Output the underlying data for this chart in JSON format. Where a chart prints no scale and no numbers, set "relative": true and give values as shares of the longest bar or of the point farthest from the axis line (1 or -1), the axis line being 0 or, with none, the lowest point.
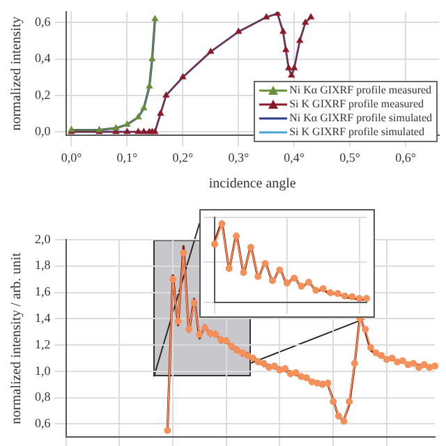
{
  "chart_data": [
    {
      "type": "line",
      "xlabel": "incidence angle",
      "ylabel": "normalized intensity",
      "x": [
        0,
        0.05,
        0.08,
        0.1,
        0.12,
        0.13,
        0.14,
        0.145,
        0.15,
        0.16,
        0.17,
        0.2,
        0.25,
        0.3,
        0.35,
        0.37,
        0.38,
        0.385,
        0.39,
        0.395,
        0.4,
        0.41,
        0.42,
        0.43
      ],
      "xlim": [
        -0.01,
        0.66
      ],
      "xticks": [
        {
          "value": 0,
          "label": "0,0°"
        },
        {
          "value": 0.1,
          "label": "0,1°"
        },
        {
          "value": 0.2,
          "label": "0,2°"
        },
        {
          "value": 0.3,
          "label": "0,3°"
        },
        {
          "value": 0.4,
          "label": "0,4°"
        },
        {
          "value": 0.5,
          "label": "0,5°"
        },
        {
          "value": 0.6,
          "label": "0,6°"
        }
      ],
      "ylim": [
        -0.02,
        0.66
      ],
      "yticks": [
        {
          "value": 0,
          "label": "0,0"
        },
        {
          "value": 0.2,
          "label": "0,2"
        },
        {
          "value": 0.4,
          "label": "0,4"
        },
        {
          "value": 0.6,
          "label": "0,6"
        }
      ],
      "grid": true,
      "legend": "bottom right",
      "series": [
        {
          "name": "Ni Kα GIXRF profile measured",
          "color": "#6a8f3a",
          "marker": "triangle",
          "values": [
            0.01,
            0.01,
            0.02,
            0.04,
            0.08,
            0.13,
            0.25,
            0.4,
            0.62,
            null,
            null,
            null,
            null,
            null,
            null,
            null,
            null,
            null,
            null,
            null,
            null,
            null,
            null,
            null
          ]
        },
        {
          "name": "Si K GIXRF profile measured",
          "color": "#8b1a2a",
          "marker": "triangle",
          "values": [
            0,
            0,
            0,
            0,
            0,
            0,
            0,
            0,
            0,
            0.1,
            0.2,
            0.3,
            0.44,
            0.55,
            0.63,
            0.65,
            0.55,
            0.45,
            0.35,
            0.31,
            0.35,
            0.5,
            0.6,
            0.63
          ]
        },
        {
          "name": "Ni Kα GIXRF profile simulated",
          "color": "#2b3a8a",
          "marker": "none",
          "values": [
            0.01,
            0.01,
            0.02,
            0.04,
            0.08,
            0.13,
            0.25,
            0.4,
            0.62,
            null,
            null,
            null,
            null,
            null,
            null,
            null,
            null,
            null,
            null,
            null,
            null,
            null,
            null,
            null
          ]
        },
        {
          "name": "Si K GIXRF profile simulated",
          "color": "#4aa3d8",
          "marker": "none",
          "values": [
            0,
            0,
            0,
            0,
            0,
            0,
            0,
            0,
            0,
            0.1,
            0.2,
            0.3,
            0.44,
            0.55,
            0.63,
            0.65,
            0.55,
            0.45,
            0.35,
            0.31,
            0.35,
            0.5,
            0.6,
            0.63
          ]
        }
      ]
    },
    {
      "type": "line",
      "ylabel": "normalized intensity / arb. unit",
      "categories": [
        null,
        null,
        null,
        null,
        null,
        null,
        null,
        null,
        null,
        null,
        null,
        null,
        null,
        null,
        null,
        null,
        null,
        null,
        null,
        null,
        null,
        null,
        null,
        null,
        null,
        null,
        null,
        null,
        null,
        null,
        null,
        null,
        null,
        null,
        null,
        null,
        null,
        null,
        null,
        null,
        null,
        null,
        null,
        null,
        null,
        null,
        null,
        null,
        null,
        null,
        null,
        null,
        null,
        null,
        null,
        null,
        null,
        null,
        null,
        null,
        null,
        null,
        null,
        null,
        null,
        null,
        null,
        null,
        null,
        null
      ],
      "ylim": [
        0.5,
        2.0
      ],
      "yticks": [
        {
          "value": 0.6,
          "label": "0,6"
        },
        {
          "value": 0.8,
          "label": "0,8"
        },
        {
          "value": 1.0,
          "label": "1,0"
        },
        {
          "value": 1.2,
          "label": "1,2"
        },
        {
          "value": 1.4,
          "label": "1,4"
        },
        {
          "value": 1.6,
          "label": "1,6"
        },
        {
          "value": 1.8,
          "label": "1,8"
        },
        {
          "value": 2.0,
          "label": "2,0"
        }
      ],
      "grid": true,
      "tick_labels": "y",
      "series": [
        {
          "color": "#f4905a",
          "marker": "circle",
          "values": [
            null,
            null,
            null,
            null,
            null,
            null,
            null,
            null,
            null,
            null,
            null,
            null,
            null,
            null,
            null,
            null,
            null,
            null,
            null,
            0.55,
            1.7,
            1.38,
            1.9,
            1.32,
            1.52,
            1.28,
            1.33,
            1.29,
            1.28,
            1.24,
            1.23,
            1.19,
            1.16,
            1.14,
            1.12,
            1.1,
            1.07,
            1.06,
            1.03,
            1.04,
            1.01,
            1.02,
            0.98,
            0.99,
            0.96,
            0.95,
            0.92,
            0.91,
            0.9,
            0.91,
            0.77,
            0.66,
            0.62,
            0.77,
            1.06,
            1.4,
            1.32,
            1.18,
            1.14,
            1.12,
            1.09,
            1.1,
            1.07,
            1.08,
            1.05,
            1.06,
            1.03,
            1.05,
            1.03,
            1.04
          ]
        },
        {
          "color": "#8b1a0a",
          "marker": "none",
          "values": [
            null,
            null,
            null,
            null,
            null,
            null,
            null,
            null,
            null,
            null,
            null,
            null,
            null,
            null,
            null,
            null,
            null,
            null,
            null,
            0.55,
            1.73,
            1.35,
            1.95,
            1.3,
            1.55,
            1.25,
            1.35,
            1.27,
            1.3,
            1.22,
            1.25,
            1.17,
            1.18,
            1.12,
            1.14,
            1.08,
            1.09,
            1.04,
            1.05,
            1.02,
            1.03,
            1.0,
            1.0,
            0.97,
            0.97,
            0.94,
            0.93,
            0.9,
            0.92,
            0.9,
            0.78,
            0.65,
            0.63,
            0.75,
            1.05,
            1.42,
            1.3,
            1.16,
            1.13,
            1.11,
            1.1,
            1.09,
            1.08,
            1.07,
            1.06,
            1.05,
            1.05,
            1.04,
            1.04,
            1.04
          ]
        }
      ]
    },
    {
      "type": "line",
      "relative": true,
      "tick_labels": false,
      "grid": true,
      "categories": [
        null,
        null,
        null,
        null,
        null,
        null,
        null,
        null,
        null,
        null,
        null,
        null,
        null,
        null,
        null,
        null,
        null,
        null,
        null,
        null,
        null,
        null
      ],
      "series": [
        {
          "color": "#f4905a",
          "marker": "circle",
          "values": [
            0.72,
            0.97,
            0.42,
            0.82,
            0.37,
            0.68,
            0.32,
            0.48,
            0.27,
            0.4,
            0.24,
            0.3,
            0.2,
            0.25,
            0.15,
            0.17,
            0.12,
            0.11,
            0.08,
            0.07,
            0.05,
            0.05
          ]
        },
        {
          "color": "#8b1a0a",
          "marker": "none",
          "values": [
            0.75,
            1,
            0.4,
            0.85,
            0.35,
            0.7,
            0.3,
            0.5,
            0.25,
            0.42,
            0.22,
            0.32,
            0.18,
            0.26,
            0.14,
            0.16,
            0.1,
            0.12,
            0.06,
            0.06,
            0.03,
            0.04
          ]
        }
      ]
    }
  ]
}
